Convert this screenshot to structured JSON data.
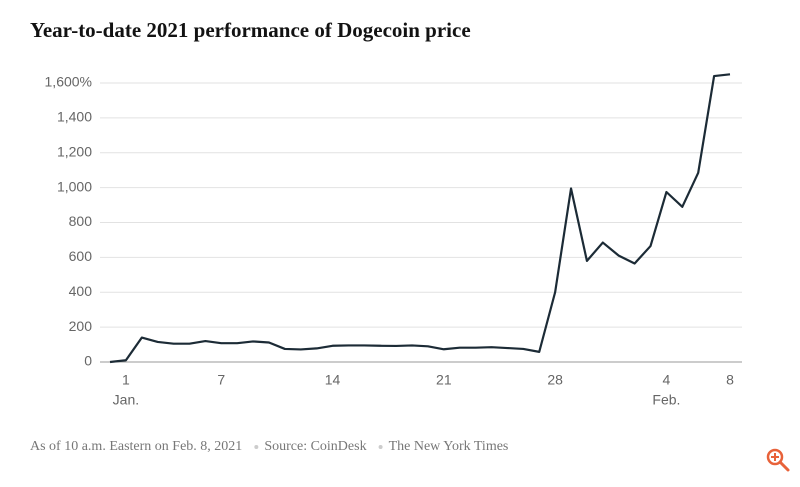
{
  "chart_data": {
    "type": "line",
    "title": "Year-to-date 2021 performance of Dogecoin price",
    "categories": [
      null,
      "1",
      null,
      null,
      null,
      null,
      null,
      "7",
      null,
      null,
      null,
      null,
      null,
      null,
      "14",
      null,
      null,
      null,
      null,
      null,
      null,
      "21",
      null,
      null,
      null,
      null,
      null,
      null,
      "28",
      null,
      null,
      null,
      null,
      null,
      null,
      "4",
      null,
      null,
      null,
      "8"
    ],
    "x_sublabels": [
      null,
      "Jan.",
      null,
      null,
      null,
      null,
      null,
      null,
      null,
      null,
      null,
      null,
      null,
      null,
      null,
      null,
      null,
      null,
      null,
      null,
      null,
      null,
      null,
      null,
      null,
      null,
      null,
      null,
      null,
      null,
      null,
      null,
      null,
      null,
      null,
      "Feb.",
      null,
      null,
      null,
      null
    ],
    "series": [
      {
        "name": "Dogecoin",
        "color": "#1c2b36",
        "values": [
          0,
          10,
          140,
          115,
          105,
          105,
          120,
          108,
          108,
          118,
          112,
          75,
          72,
          78,
          93,
          95,
          95,
          93,
          92,
          95,
          90,
          73,
          82,
          82,
          85,
          80,
          75,
          58,
          400,
          995,
          580,
          685,
          610,
          565,
          665,
          975,
          890,
          1085,
          1640,
          1650
        ]
      }
    ],
    "ylim": [
      0,
      1700
    ],
    "yticks": [
      0,
      200,
      400,
      600,
      800,
      {
        "value": 1000,
        "label": "1,000"
      },
      {
        "value": 1200,
        "label": "1,200"
      },
      {
        "value": 1400,
        "label": "1,400"
      },
      {
        "value": 1600,
        "label": "1,600%"
      }
    ],
    "grid": true,
    "footer": [
      "As of 10 a.m. Eastern on Feb. 8, 2021",
      "Source: CoinDesk",
      "The New York Times"
    ]
  }
}
